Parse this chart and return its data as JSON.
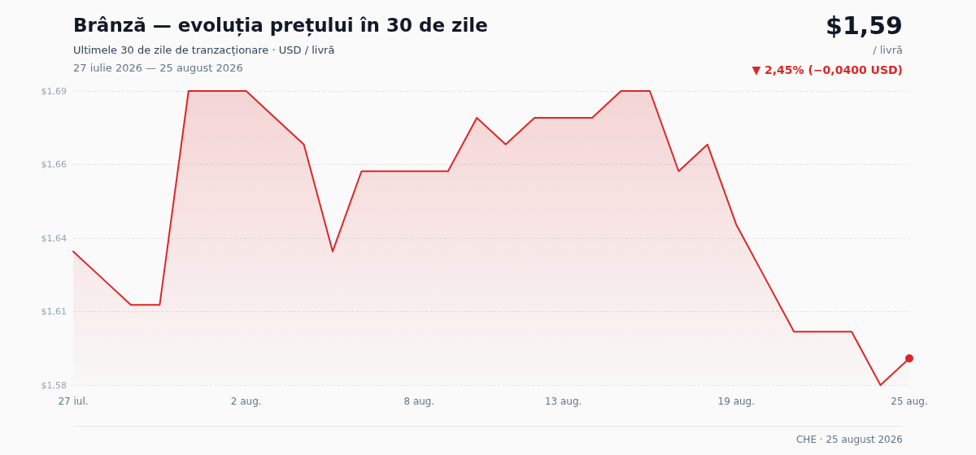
{
  "chart_data": {
    "type": "area",
    "title": "Brânză — evoluția prețului în 30 de zile",
    "subtitle": "Ultimele 30 de zile de tranzacționare · USD / livră",
    "annotations": [
      "27 iulie 2026 — 25 august 2026",
      "$1,59",
      "/ livră",
      "▼ 2,45% (−0,0400 USD)",
      "CHE · 25 august 2026"
    ],
    "x": [
      "2026-07-27",
      "2026-07-28",
      "2026-07-29",
      "2026-07-30",
      "2026-07-31",
      "2026-08-01",
      "2026-08-02",
      "2026-08-03",
      "2026-08-04",
      "2026-08-05",
      "2026-08-06",
      "2026-08-07",
      "2026-08-08",
      "2026-08-09",
      "2026-08-10",
      "2026-08-11",
      "2026-08-12",
      "2026-08-13",
      "2026-08-14",
      "2026-08-15",
      "2026-08-16",
      "2026-08-17",
      "2026-08-18",
      "2026-08-19",
      "2026-08-20",
      "2026-08-21",
      "2026-08-22",
      "2026-08-23",
      "2026-08-24",
      "2026-08-25"
    ],
    "series": [
      {
        "color": "#dc2626",
        "values": [
          1.63,
          1.62,
          1.61,
          1.61,
          1.69,
          1.69,
          1.69,
          1.68,
          1.67,
          1.63,
          1.66,
          1.66,
          1.66,
          1.66,
          1.68,
          1.67,
          1.68,
          1.68,
          1.68,
          1.69,
          1.69,
          1.66,
          1.67,
          1.64,
          1.62,
          1.6,
          1.6,
          1.6,
          1.58,
          1.59
        ]
      }
    ],
    "xlim": [
      "2026-07-27",
      "2026-08-25"
    ],
    "xticks": [
      {
        "value": "2026-07-27",
        "label": "27 iul."
      },
      {
        "value": "2026-08-02",
        "label": "2 aug."
      },
      {
        "value": "2026-08-08",
        "label": "8 aug."
      },
      {
        "value": "2026-08-13",
        "label": "13 aug."
      },
      {
        "value": "2026-08-19",
        "label": "19 aug."
      },
      {
        "value": "2026-08-25",
        "label": "25 aug."
      }
    ],
    "ylim": [
      1.58,
      1.69
    ],
    "yticks": [
      {
        "value": 1.58,
        "label": "$1,58"
      },
      {
        "value": 1.6075,
        "label": "$1,61"
      },
      {
        "value": 1.635,
        "label": "$1,64"
      },
      {
        "value": 1.6625,
        "label": "$1,66"
      },
      {
        "value": 1.69,
        "label": "$1,69"
      }
    ],
    "grid": "y",
    "marker": "none",
    "line_style": "solid"
  }
}
